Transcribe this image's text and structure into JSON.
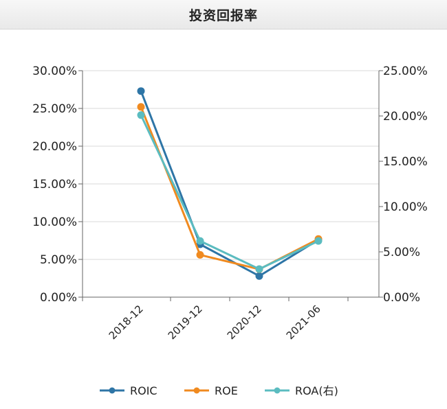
{
  "chart_data": {
    "type": "line",
    "title": "投资回报率",
    "categories": [
      "2018-12",
      "2019-12",
      "2020-12",
      "2021-06"
    ],
    "y_left": {
      "ticks": [
        "0.00%",
        "5.00%",
        "10.00%",
        "15.00%",
        "20.00%",
        "25.00%",
        "30.00%"
      ],
      "ylim": [
        0,
        30
      ]
    },
    "y_right": {
      "ticks": [
        "0.00%",
        "5.00%",
        "10.00%",
        "15.00%",
        "20.00%",
        "25.00%"
      ],
      "ylim": [
        0,
        25
      ]
    },
    "series": [
      {
        "name": "ROIC",
        "axis": "left",
        "color": "#2e75a6",
        "values": [
          27.3,
          7.0,
          2.8,
          7.6
        ]
      },
      {
        "name": "ROE",
        "axis": "left",
        "color": "#f08a1f",
        "values": [
          25.2,
          5.6,
          3.7,
          7.7
        ]
      },
      {
        "name": "ROA(右)",
        "axis": "right",
        "color": "#5bbcc0",
        "values": [
          20.1,
          6.2,
          3.1,
          6.2
        ]
      }
    ],
    "grid": true,
    "legend": "bottom"
  }
}
